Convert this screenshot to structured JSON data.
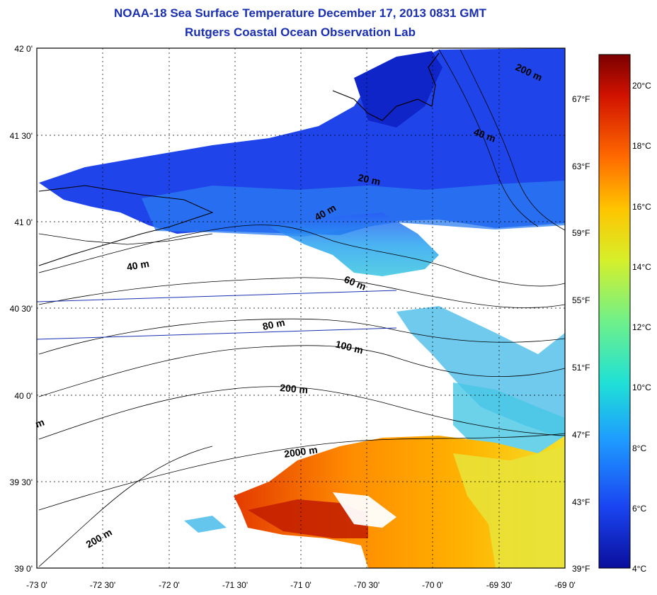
{
  "header": {
    "title": "NOAA-18 Sea Surface Temperature December 17, 2013 0831 GMT",
    "subtitle": "Rutgers Coastal Ocean Observation Lab"
  },
  "map": {
    "lat_labels": [
      "42 0'",
      "41 30'",
      "41 0'",
      "40 30'",
      "40 0'",
      "39 30'",
      "39 0'"
    ],
    "lon_labels": [
      "-73 0'",
      "-72 30'",
      "-72 0'",
      "-71 30'",
      "-71 0'",
      "-70 30'",
      "-70 0'",
      "-69 30'",
      "-69 0'"
    ],
    "depth_labels": [
      "200 m",
      "40 m",
      "20 m",
      "40 m",
      "40 m",
      "60 m",
      "80 m",
      "100 m",
      "200 m",
      "2000 m",
      "200 m",
      "m"
    ],
    "extent": {
      "lon": [
        -73,
        -69
      ],
      "lat": [
        39,
        42
      ]
    }
  },
  "colorbar": {
    "celsius_labels": [
      "20°C",
      "18°C",
      "16°C",
      "14°C",
      "12°C",
      "10°C",
      "8°C",
      "6°C",
      "4°C"
    ],
    "fahrenheit_labels": [
      "67°F",
      "63°F",
      "59°F",
      "55°F",
      "51°F",
      "47°F",
      "43°F",
      "39°F"
    ],
    "colors": [
      "#7a0000",
      "#d11200",
      "#ff6a00",
      "#ffc400",
      "#d6ef2a",
      "#6ff08a",
      "#1fe0d6",
      "#1e9cff",
      "#1a45f2",
      "#0a0f9c"
    ]
  }
}
